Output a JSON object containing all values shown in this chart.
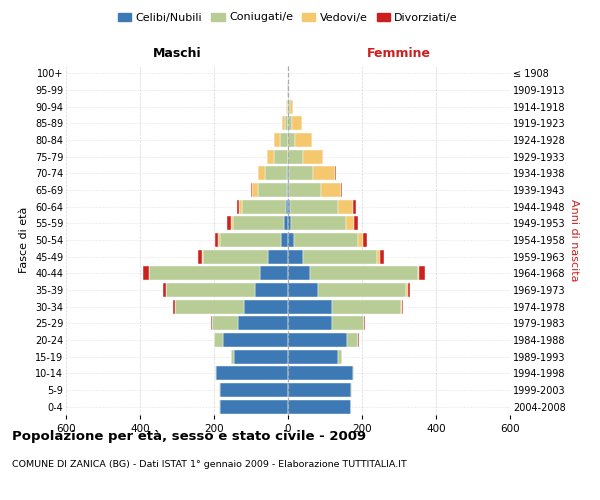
{
  "age_groups": [
    "0-4",
    "5-9",
    "10-14",
    "15-19",
    "20-24",
    "25-29",
    "30-34",
    "35-39",
    "40-44",
    "45-49",
    "50-54",
    "55-59",
    "60-64",
    "65-69",
    "70-74",
    "75-79",
    "80-84",
    "85-89",
    "90-94",
    "95-99",
    "100+"
  ],
  "birth_years": [
    "2004-2008",
    "1999-2003",
    "1994-1998",
    "1989-1993",
    "1984-1988",
    "1979-1983",
    "1974-1978",
    "1969-1973",
    "1964-1968",
    "1959-1963",
    "1954-1958",
    "1949-1953",
    "1944-1948",
    "1939-1943",
    "1934-1938",
    "1929-1933",
    "1924-1928",
    "1919-1923",
    "1914-1918",
    "1909-1913",
    "≤ 1908"
  ],
  "male": {
    "celibi": [
      185,
      185,
      195,
      145,
      175,
      135,
      120,
      90,
      75,
      55,
      20,
      10,
      5,
      2,
      2,
      0,
      0,
      0,
      0,
      0,
      0
    ],
    "coniugati": [
      1,
      2,
      3,
      8,
      25,
      70,
      185,
      240,
      300,
      175,
      165,
      140,
      120,
      80,
      60,
      38,
      22,
      8,
      4,
      2,
      1
    ],
    "vedovi": [
      0,
      0,
      0,
      0,
      0,
      0,
      0,
      1,
      1,
      2,
      3,
      5,
      8,
      15,
      18,
      20,
      15,
      8,
      2,
      1,
      0
    ],
    "divorziati": [
      0,
      0,
      0,
      0,
      1,
      2,
      5,
      8,
      15,
      10,
      10,
      10,
      5,
      2,
      0,
      0,
      0,
      0,
      0,
      0,
      0
    ]
  },
  "female": {
    "nubili": [
      170,
      170,
      175,
      135,
      160,
      120,
      120,
      80,
      60,
      40,
      15,
      8,
      5,
      3,
      2,
      0,
      0,
      0,
      0,
      0,
      0
    ],
    "coniugate": [
      1,
      2,
      3,
      10,
      30,
      85,
      185,
      240,
      290,
      200,
      175,
      150,
      130,
      85,
      65,
      40,
      20,
      12,
      5,
      2,
      1
    ],
    "vedove": [
      0,
      0,
      0,
      0,
      0,
      1,
      2,
      3,
      5,
      8,
      12,
      20,
      40,
      55,
      60,
      55,
      45,
      25,
      8,
      2,
      0
    ],
    "divorziate": [
      0,
      0,
      0,
      0,
      1,
      2,
      5,
      8,
      15,
      12,
      12,
      12,
      8,
      3,
      2,
      0,
      0,
      0,
      0,
      0,
      0
    ]
  },
  "colors": {
    "celibi": "#3d7ab5",
    "coniugati": "#b8cc96",
    "vedovi": "#f5c86e",
    "divorziati": "#cc2020"
  },
  "xlim": 600,
  "title": "Popolazione per età, sesso e stato civile - 2009",
  "subtitle": "COMUNE DI ZANICA (BG) - Dati ISTAT 1° gennaio 2009 - Elaborazione TUTTITALIA.IT",
  "xlabel_left": "Maschi",
  "xlabel_right": "Femmine",
  "ylabel_left": "Fasce di età",
  "ylabel_right": "Anni di nascita",
  "bg_color": "#ffffff",
  "grid_color": "#cccccc"
}
